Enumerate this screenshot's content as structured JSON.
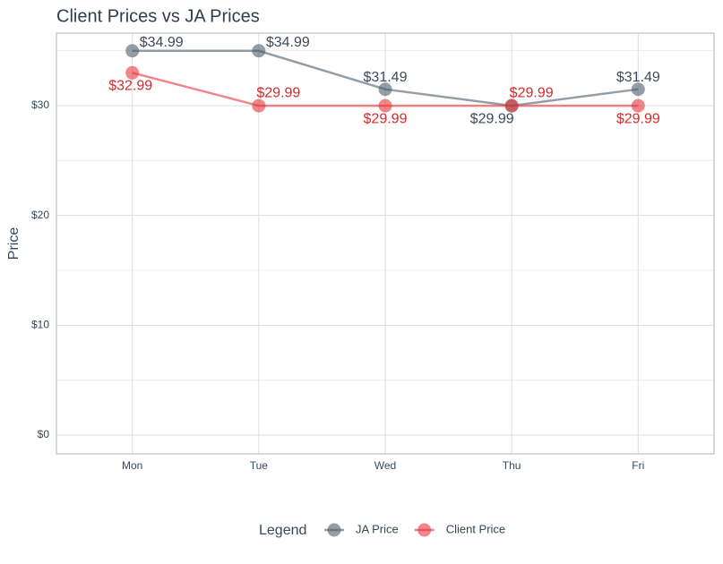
{
  "chart_data": {
    "type": "line",
    "title": "Client Prices vs JA Prices",
    "y_label": "Price",
    "legend_title": "Legend",
    "legend_position": "bottom",
    "grid": true,
    "categories": [
      "Mon",
      "Tue",
      "Wed",
      "Thu",
      "Fri"
    ],
    "series": [
      {
        "name": "JA Price",
        "color": "#4f5d6c",
        "values": [
          34.99,
          34.99,
          31.49,
          29.99,
          31.49
        ],
        "value_labels": [
          "$34.99",
          "$34.99",
          "$31.49",
          "$29.99",
          "$31.49"
        ]
      },
      {
        "name": "Client Price",
        "color": "#e8353a",
        "values": [
          32.99,
          29.99,
          29.99,
          29.99,
          29.99
        ],
        "value_labels": [
          "$32.99",
          "$29.99",
          "$29.99",
          "$29.99",
          "$29.99"
        ]
      }
    ],
    "ylim": [
      -1.71,
      36.6
    ],
    "yticks": [
      {
        "value": 0,
        "label": "$0"
      },
      {
        "value": 10,
        "label": "$10"
      },
      {
        "value": 20,
        "label": "$20"
      },
      {
        "value": 30,
        "label": "$30"
      }
    ]
  }
}
